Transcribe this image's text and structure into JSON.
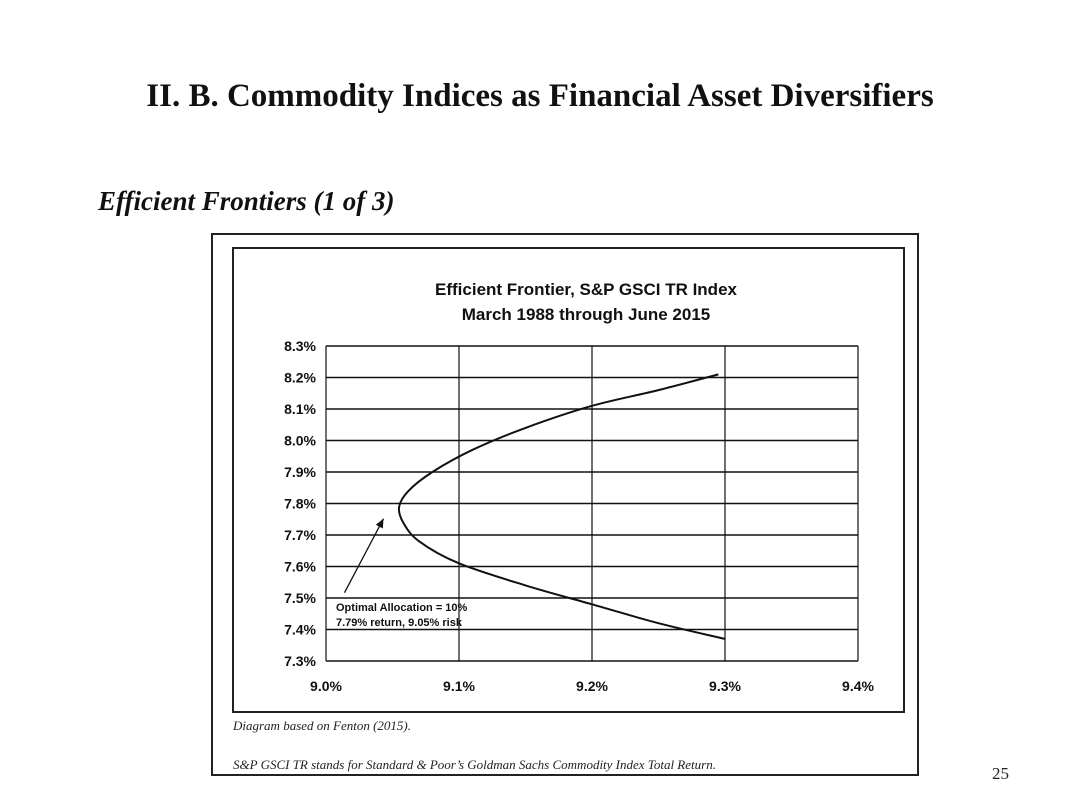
{
  "slide": {
    "title": "II.  B.  Commodity Indices as Financial Asset Diversifiers",
    "subtitle": "Efficient Frontiers (1 of 3)",
    "caption_1": "Diagram based on Fenton (2015).",
    "caption_2": "S&P GSCI TR stands for Standard & Poor’s Goldman Sachs Commodity Index Total Return.",
    "page_number": "25"
  },
  "chart_data": {
    "type": "line",
    "title_line1": "Efficient Frontier, S&P GSCI TR Index",
    "title_line2": "March 1988 through June 2015",
    "xlabel": "",
    "ylabel": "",
    "xlim": [
      9.0,
      9.4
    ],
    "ylim": [
      7.3,
      8.3
    ],
    "x_ticks": [
      "9.0%",
      "9.1%",
      "9.2%",
      "9.3%",
      "9.4%"
    ],
    "y_ticks": [
      "8.3%",
      "8.2%",
      "8.1%",
      "8.0%",
      "7.9%",
      "7.8%",
      "7.7%",
      "7.6%",
      "7.5%",
      "7.4%",
      "7.3%"
    ],
    "grid": true,
    "line_color": "#111111",
    "series": [
      {
        "x": [
          9.295,
          9.25,
          9.2,
          9.15,
          9.11,
          9.08,
          9.062,
          9.055,
          9.058,
          9.07,
          9.1,
          9.15,
          9.2,
          9.25,
          9.3
        ],
        "y": [
          8.21,
          8.16,
          8.11,
          8.04,
          7.97,
          7.9,
          7.84,
          7.79,
          7.74,
          7.68,
          7.61,
          7.54,
          7.48,
          7.42,
          7.37
        ]
      }
    ],
    "annotation": {
      "line1": "Optimal Allocation = 10%",
      "line2": "7.79% return, 9.05% risk",
      "x": 9.05,
      "y": 7.79
    }
  }
}
